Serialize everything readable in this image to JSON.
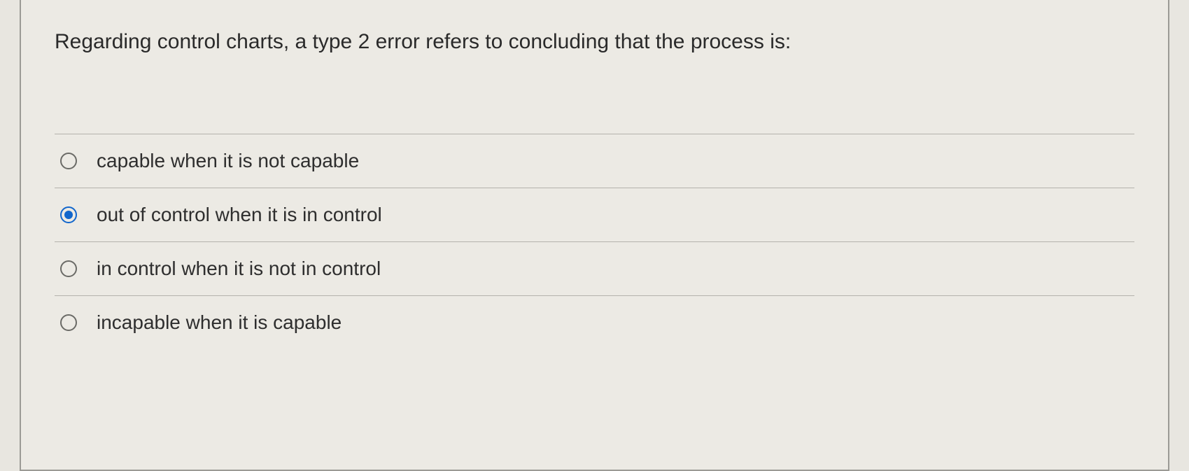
{
  "question": {
    "text": "Regarding control charts, a type 2 error refers to concluding that the process is:"
  },
  "options": [
    {
      "label": "capable when it is not capable",
      "selected": false
    },
    {
      "label": "out of control when it is in control",
      "selected": true
    },
    {
      "label": "in control when it is not in control",
      "selected": false
    },
    {
      "label": "incapable when it is capable",
      "selected": false
    }
  ],
  "colors": {
    "accent": "#1166cc",
    "border": "#b4b2ac",
    "text": "#2a2a2a",
    "background": "#eceae4"
  }
}
